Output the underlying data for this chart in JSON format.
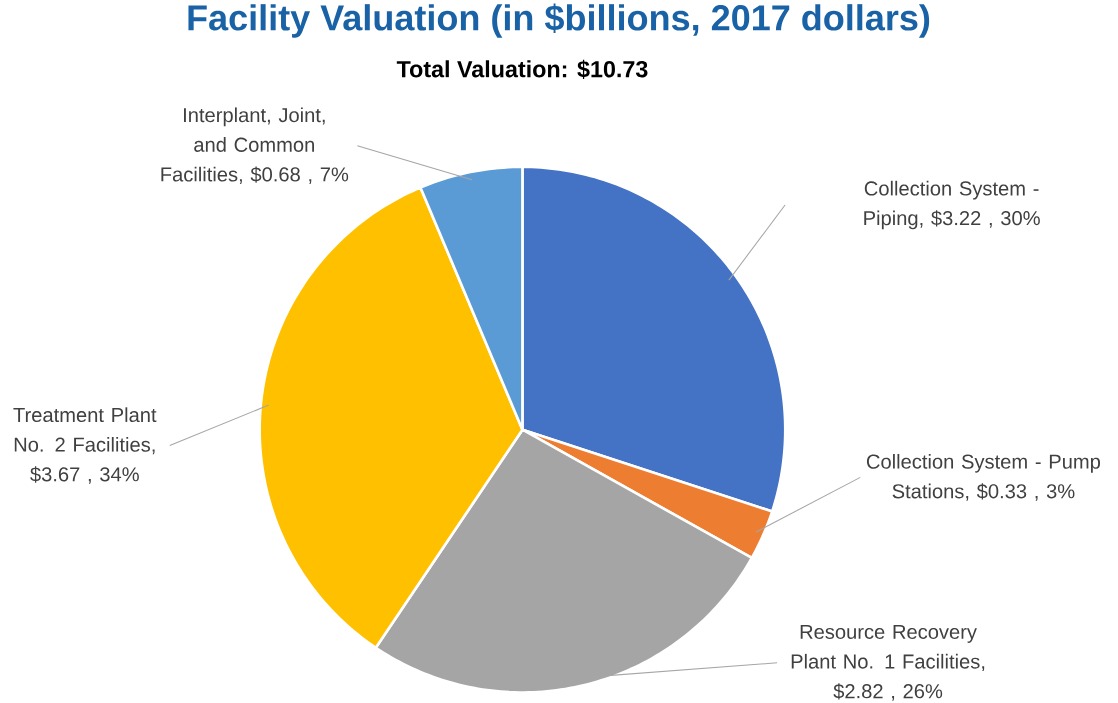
{
  "chart_data": {
    "type": "pie",
    "title": "Facility Valuation (in $billions, 2017 dollars)",
    "subtitle": "Total Valuation: $10.73",
    "categories": [
      "Collection System - Piping",
      "Collection System - Pump Stations",
      "Resource Recovery Plant No. 1 Facilities",
      "Treatment Plant No. 2 Facilities",
      "Interplant, Joint, and Common Facilities"
    ],
    "values": [
      3.22,
      0.33,
      2.82,
      3.67,
      0.68
    ],
    "value_labels": [
      ", $3.22 , 30%",
      ", $0.33 , 3%",
      ", $2.82 , 26%",
      ", $3.67 , 34%",
      ", $0.68 , 7%"
    ],
    "colors": [
      "#4472c4",
      "#ed7d31",
      "#a5a5a5",
      "#ffc000",
      "#5b9bd5"
    ]
  }
}
